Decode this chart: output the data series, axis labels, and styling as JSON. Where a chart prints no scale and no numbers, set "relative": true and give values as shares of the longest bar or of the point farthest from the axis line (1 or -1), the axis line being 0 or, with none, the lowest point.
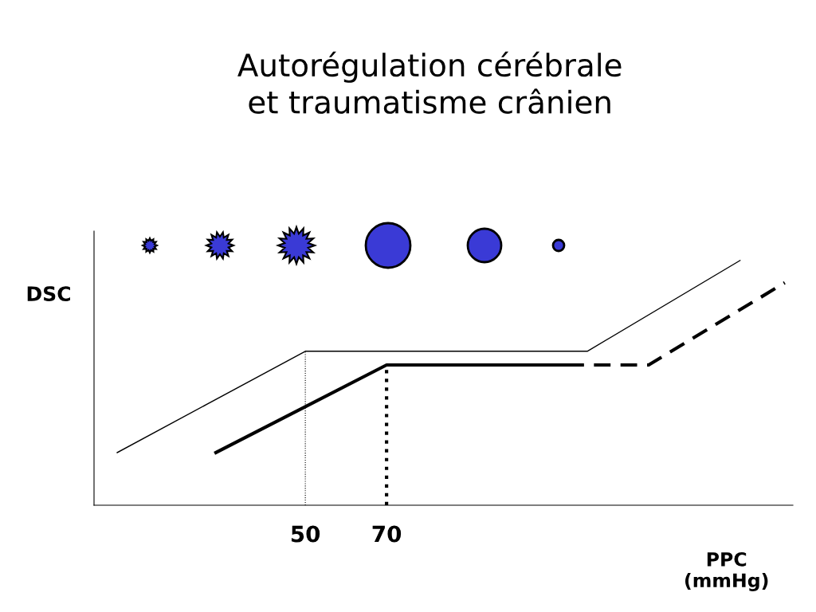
{
  "chart_data": {
    "type": "line",
    "title": "Autorégulation cérébrale\net traumatisme crânien",
    "xlabel": "PPC\n(mmHg)",
    "ylabel": "DSC",
    "relative": true,
    "xlim": [
      -2,
      170
    ],
    "xticks": [
      50,
      70
    ],
    "grid": false,
    "legend": false,
    "marker": "none",
    "tick_labels": "x",
    "series": [
      {
        "color": "#000000",
        "line_style": "solid",
        "x": [
          3.7,
          50,
          119.4,
          157
        ],
        "values": [
          0.215,
          0.629,
          0.629,
          1
        ]
      },
      {
        "color": "#000000",
        "line_style": "solid",
        "x": [
          28,
          70,
          114.5
        ],
        "values": [
          0.215,
          0.573,
          0.573
        ]
      },
      {
        "color": "#000000",
        "line_style": "dashed",
        "x": [
          114.5,
          134.5,
          168
        ],
        "values": [
          0.573,
          0.573,
          0.909
        ]
      },
      {
        "color": "#000000",
        "line_style": "dotted",
        "x": [
          50,
          50
        ],
        "values": [
          0,
          0.629
        ]
      },
      {
        "color": "#000000",
        "line_style": "dotted",
        "x": [
          70,
          70
        ],
        "values": [
          0,
          0.573
        ]
      }
    ]
  }
}
